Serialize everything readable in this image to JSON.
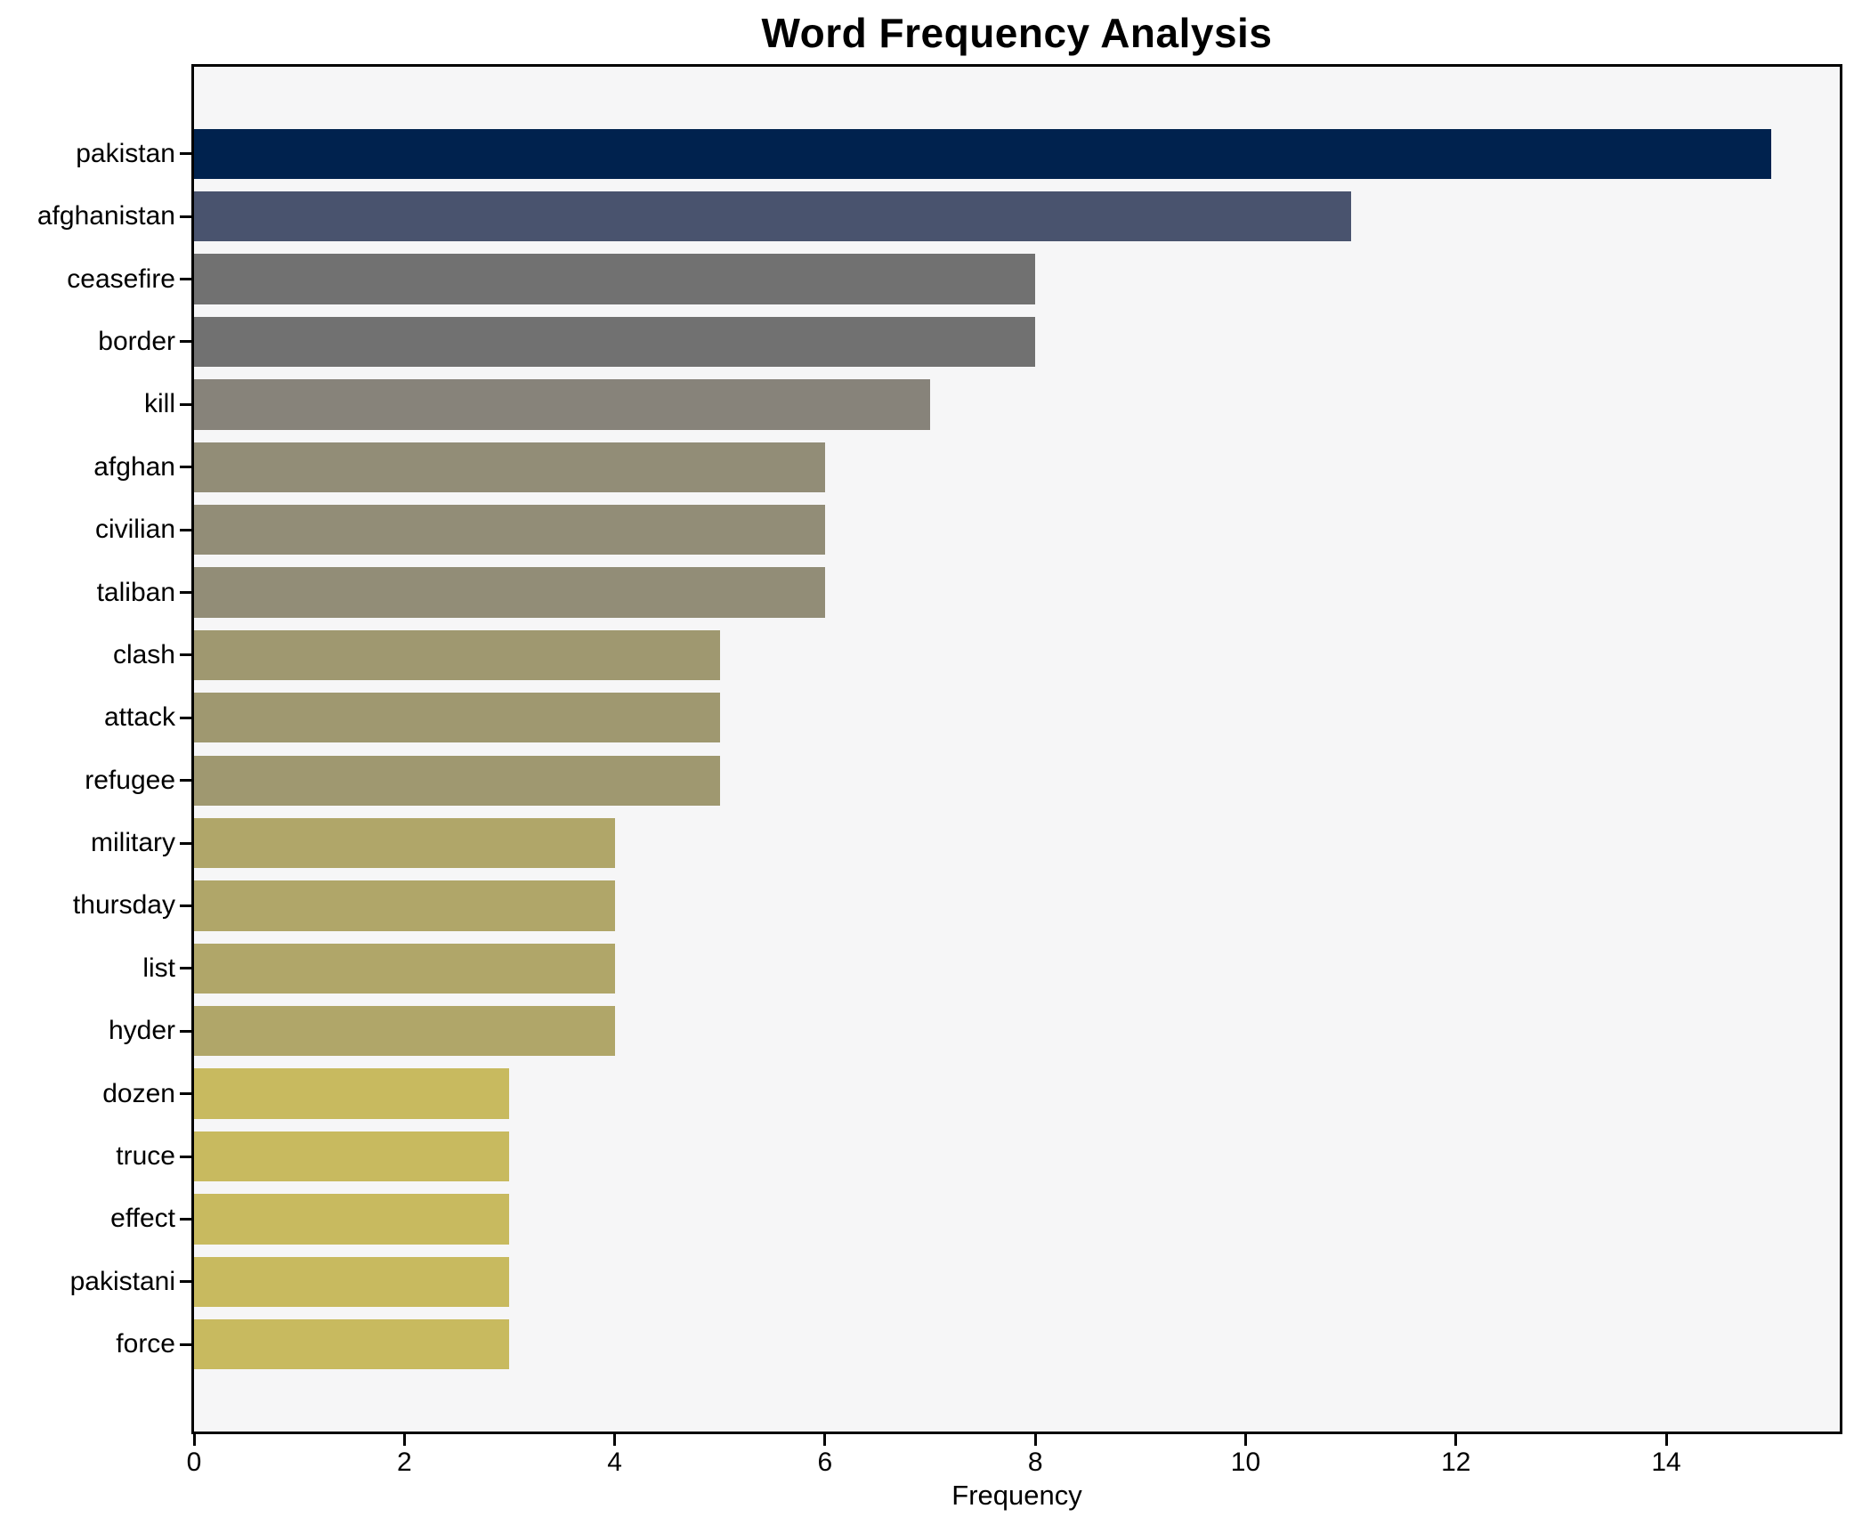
{
  "chart_data": {
    "type": "bar",
    "orientation": "horizontal",
    "title": "Word Frequency Analysis",
    "xlabel": "Frequency",
    "ylabel": "",
    "categories": [
      "pakistan",
      "afghanistan",
      "ceasefire",
      "border",
      "kill",
      "afghan",
      "civilian",
      "taliban",
      "clash",
      "attack",
      "refugee",
      "military",
      "thursday",
      "list",
      "hyder",
      "dozen",
      "truce",
      "effect",
      "pakistani",
      "force"
    ],
    "values": [
      15,
      11,
      8,
      8,
      7,
      6,
      6,
      6,
      5,
      5,
      5,
      4,
      4,
      4,
      4,
      3,
      3,
      3,
      3,
      3
    ],
    "bar_colors": [
      "#00224e",
      "#49536e",
      "#717171",
      "#717171",
      "#87837a",
      "#928d77",
      "#928d77",
      "#928d77",
      "#9f9870",
      "#9f9870",
      "#9f9870",
      "#b0a669",
      "#b0a669",
      "#b0a669",
      "#b0a669",
      "#c8ba5f",
      "#c8ba5f",
      "#c8ba5f",
      "#c8ba5f",
      "#c8ba5f"
    ],
    "xlim": [
      0,
      15.65
    ],
    "xticks": [
      0,
      2,
      4,
      6,
      8,
      10,
      12,
      14
    ],
    "grid": false,
    "legend": null,
    "colors": {
      "figure_bg": "#ffffff",
      "plot_bg": "#f6f6f7",
      "spine": "#000000",
      "text": "#000000"
    }
  }
}
